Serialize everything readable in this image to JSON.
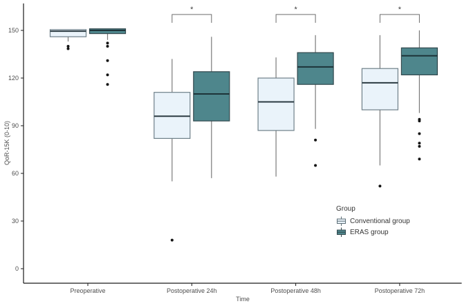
{
  "colors": {
    "background": "#ffffff",
    "axis": "#1a1a1a",
    "tick_text": "#4d4d4d",
    "whisker": "#7a7a7a",
    "outlier": "#141414",
    "bracket": "#6b6b6b",
    "asterisk": "#3a3a3a"
  },
  "chart_data": {
    "type": "boxplot",
    "title": "",
    "xlabel": "Time",
    "ylabel": "QoR-15K (0-10)",
    "ylim": [
      0,
      167
    ],
    "yticks": [
      0,
      30,
      60,
      90,
      120,
      150
    ],
    "grid": "off",
    "legend_position": "right-bottom",
    "categories": [
      "Preoperative",
      "Postoperative 24h",
      "Postoperative 48h",
      "Postoperative 72h"
    ],
    "legend": {
      "title": "Group",
      "entries": [
        {
          "label": "Conventional group",
          "fill": "#eaf3fa",
          "stroke": "#5c6e76"
        },
        {
          "label": "ERAS group",
          "fill": "#4e868c",
          "stroke": "#31474c"
        }
      ]
    },
    "series": [
      {
        "name": "Conventional group",
        "fill": "#eaf3fa",
        "stroke": "#6e7f88",
        "median_color": "#2b3a41",
        "boxes": [
          {
            "category": "Preoperative",
            "low": 143,
            "q1": 146,
            "median": 149.5,
            "q3": 150.5,
            "high": 150.5,
            "outliers": [
              140,
              138.5
            ]
          },
          {
            "category": "Postoperative 24h",
            "low": 55,
            "q1": 82,
            "median": 96,
            "q3": 111,
            "high": 132,
            "outliers": [
              18
            ]
          },
          {
            "category": "Postoperative 48h",
            "low": 58,
            "q1": 87,
            "median": 105,
            "q3": 120,
            "high": 133,
            "outliers": []
          },
          {
            "category": "Postoperative 72h",
            "low": 65,
            "q1": 100,
            "median": 117,
            "q3": 126,
            "high": 147,
            "outliers": [
              52
            ]
          }
        ]
      },
      {
        "name": "ERAS group",
        "fill": "#4e868c",
        "stroke": "#31474c",
        "median_color": "#1d3338",
        "boxes": [
          {
            "category": "Preoperative",
            "low": 144,
            "q1": 148,
            "median": 150,
            "q3": 151,
            "high": 151,
            "outliers": [
              142,
              140,
              131,
              122,
              116
            ]
          },
          {
            "category": "Postoperative 24h",
            "low": 57,
            "q1": 93,
            "median": 110,
            "q3": 124,
            "high": 146,
            "outliers": []
          },
          {
            "category": "Postoperative 48h",
            "low": 88,
            "q1": 116,
            "median": 127,
            "q3": 136,
            "high": 147,
            "outliers": [
              81,
              65
            ]
          },
          {
            "category": "Postoperative 72h",
            "low": 98,
            "q1": 122,
            "median": 134,
            "q3": 139,
            "high": 150,
            "outliers": [
              94,
              93,
              85,
              79,
              77,
              69
            ]
          }
        ]
      }
    ],
    "significance": [
      {
        "category": "Postoperative 24h",
        "label": "*"
      },
      {
        "category": "Postoperative 48h",
        "label": "*"
      },
      {
        "category": "Postoperative 72h",
        "label": "*"
      }
    ]
  }
}
